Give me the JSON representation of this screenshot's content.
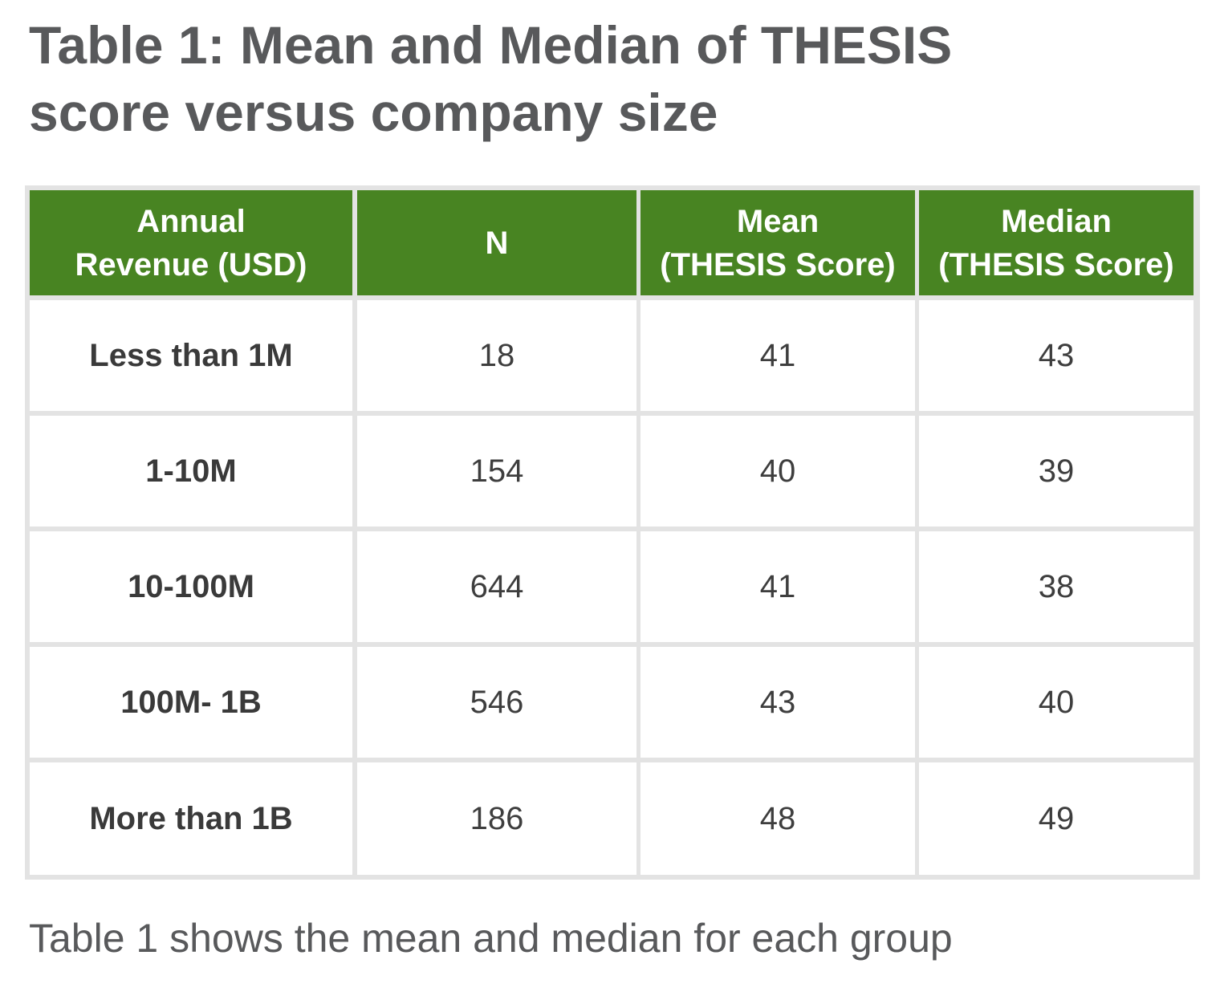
{
  "title": {
    "line1": "Table 1: Mean and Median of THESIS",
    "line2": "score versus company size"
  },
  "table": {
    "headers": [
      [
        "Annual",
        "Revenue (USD)"
      ],
      [
        "N"
      ],
      [
        "Mean",
        "(THESIS Score)"
      ],
      [
        "Median",
        "(THESIS Score)"
      ]
    ],
    "rows": [
      [
        "Less than 1M",
        "18",
        "41",
        "43"
      ],
      [
        "1-10M",
        "154",
        "40",
        "39"
      ],
      [
        "10-100M",
        "644",
        "41",
        "38"
      ],
      [
        "100M- 1B",
        "546",
        "43",
        "40"
      ],
      [
        "More than 1B",
        "186",
        "48",
        "49"
      ]
    ]
  },
  "caption": "Table 1 shows the mean and median for each group",
  "colors": {
    "header_bg": "#488422",
    "header_text": "#ffffff",
    "grid": "#e3e3e3",
    "title_text": "#58595b"
  }
}
